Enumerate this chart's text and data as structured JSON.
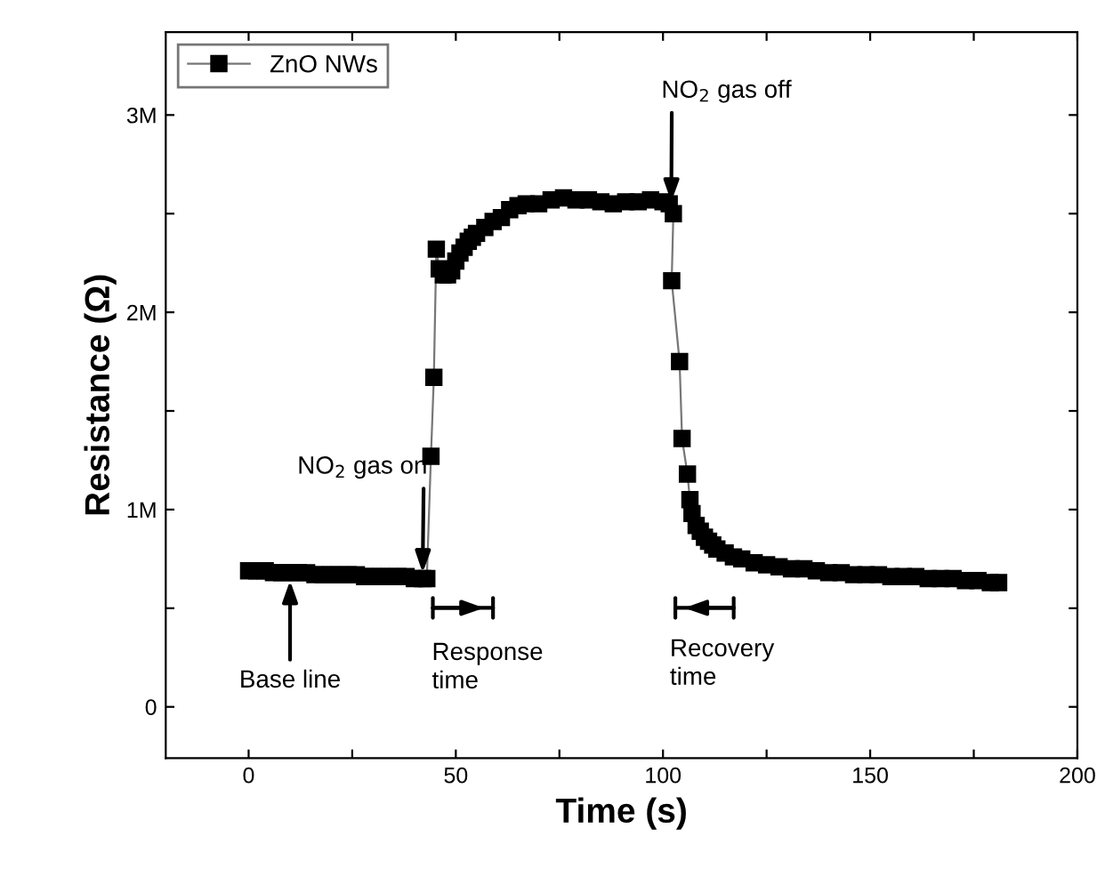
{
  "chart_data": {
    "type": "line",
    "xlabel": "Time (s)",
    "ylabel": "Resistance (Ω)",
    "xlim": [
      -20,
      200
    ],
    "xticks": [
      0,
      {
        "value": 25,
        "label": null
      },
      50,
      {
        "value": 75,
        "label": null
      },
      100,
      {
        "value": 125,
        "label": null
      },
      150,
      {
        "value": 175,
        "label": null
      },
      200
    ],
    "ylim": [
      -260000,
      3420000
    ],
    "yticks": [
      {
        "value": 0,
        "label": "0"
      },
      {
        "value": 500000,
        "label": null
      },
      {
        "value": 1000000,
        "label": "1M"
      },
      {
        "value": 1500000,
        "label": null
      },
      {
        "value": 2000000,
        "label": "2M"
      },
      {
        "value": 2500000,
        "label": null
      },
      {
        "value": 3000000,
        "label": "3M"
      }
    ],
    "marker": "square",
    "line_style": "solid",
    "legend": "top left",
    "grid": false,
    "series": [
      {
        "name": "ZnO NWs",
        "color": "#000000",
        "x": [
          0,
          2,
          4,
          6,
          8,
          10,
          12,
          14,
          16,
          18,
          20,
          22,
          24,
          26,
          28,
          30,
          32,
          34,
          36,
          38,
          40,
          42,
          43,
          44,
          44.7,
          45.3,
          46,
          47,
          48,
          49,
          50,
          51,
          52,
          53,
          54,
          55,
          57,
          59,
          61,
          63,
          65,
          67,
          70,
          73,
          76,
          79,
          82,
          85,
          88,
          91,
          94,
          97,
          100,
          101.5,
          102.5,
          102.1,
          104,
          104.6,
          105.9,
          106.5,
          107,
          108,
          109,
          110,
          111,
          112,
          113,
          115,
          117,
          119,
          122,
          125,
          128,
          131,
          134,
          137,
          140,
          143,
          146,
          149,
          152,
          155,
          158,
          161,
          164,
          167,
          170,
          173,
          176,
          179,
          181
        ],
        "values": [
          690000,
          690000,
          690000,
          680000,
          680000,
          680000,
          680000,
          680000,
          670000,
          670000,
          670000,
          670000,
          670000,
          670000,
          660000,
          660000,
          660000,
          660000,
          660000,
          660000,
          650000,
          650000,
          650000,
          1270000,
          1670000,
          2320000,
          2220000,
          2190000,
          2190000,
          2210000,
          2260000,
          2300000,
          2330000,
          2360000,
          2380000,
          2400000,
          2430000,
          2460000,
          2480000,
          2520000,
          2540000,
          2550000,
          2550000,
          2570000,
          2580000,
          2570000,
          2570000,
          2560000,
          2550000,
          2560000,
          2560000,
          2570000,
          2560000,
          2550000,
          2500000,
          2160000,
          1750000,
          1360000,
          1180000,
          1050000,
          980000,
          920000,
          890000,
          860000,
          840000,
          820000,
          800000,
          780000,
          760000,
          750000,
          730000,
          720000,
          710000,
          700000,
          700000,
          690000,
          680000,
          680000,
          670000,
          670000,
          670000,
          660000,
          660000,
          660000,
          650000,
          650000,
          650000,
          640000,
          640000,
          630000,
          630000
        ]
      }
    ],
    "annotations": [
      {
        "text": "NO$_{2}$ gas on",
        "x": 42,
        "y": 680000
      },
      {
        "text": "NO$_{2}$ gas off",
        "x": 102,
        "y": 2560000
      },
      {
        "text": "Base line",
        "x": 10,
        "y": 640000
      },
      "Response\ntime",
      "Recovery\ntime"
    ]
  }
}
